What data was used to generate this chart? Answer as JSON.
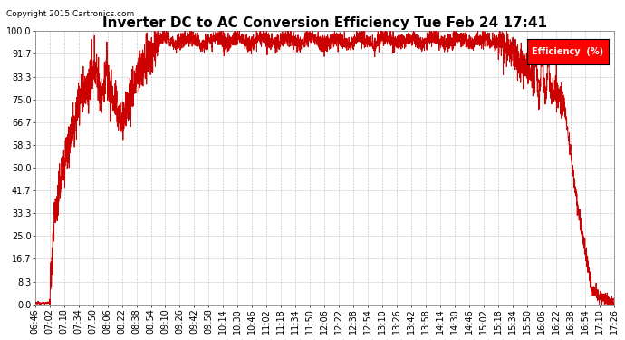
{
  "title": "Inverter DC to AC Conversion Efficiency Tue Feb 24 17:41",
  "copyright": "Copyright 2015 Cartronics.com",
  "legend_label": "Efficiency  (%)",
  "legend_bg": "#ff0000",
  "legend_fg": "#ffffff",
  "ylim": [
    0.0,
    100.0
  ],
  "yticks": [
    0.0,
    8.3,
    16.7,
    25.0,
    33.3,
    41.7,
    50.0,
    58.3,
    66.7,
    75.0,
    83.3,
    91.7,
    100.0
  ],
  "line_color": "#cc0000",
  "bg_color": "#ffffff",
  "grid_color": "#aaaaaa",
  "title_fontsize": 11,
  "tick_fontsize": 7,
  "xtick_labels": [
    "06:46",
    "07:02",
    "07:18",
    "07:34",
    "07:50",
    "08:06",
    "08:22",
    "08:38",
    "08:54",
    "09:10",
    "09:26",
    "09:42",
    "09:58",
    "10:14",
    "10:30",
    "10:46",
    "11:02",
    "11:18",
    "11:34",
    "11:50",
    "12:06",
    "12:22",
    "12:38",
    "12:54",
    "13:10",
    "13:26",
    "13:42",
    "13:58",
    "14:14",
    "14:30",
    "14:46",
    "15:02",
    "15:18",
    "15:34",
    "15:50",
    "16:06",
    "16:22",
    "16:38",
    "16:54",
    "17:10",
    "17:26"
  ]
}
